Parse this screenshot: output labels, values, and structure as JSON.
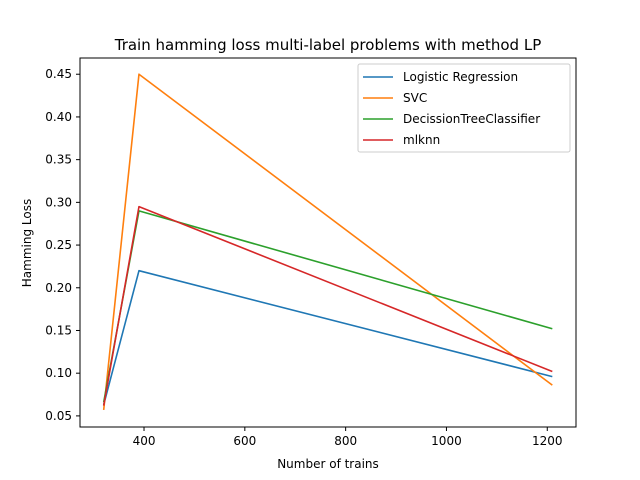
{
  "chart_data": {
    "type": "line",
    "title": "Train hamming loss multi-label problems with method LP",
    "xlabel": "Number of trains",
    "ylabel": "Hamming Loss",
    "xlim": [
      273,
      1257
    ],
    "ylim": [
      0.037,
      0.469
    ],
    "xticks": [
      400,
      600,
      800,
      1000,
      1200
    ],
    "xtick_labels": [
      "400",
      "600",
      "800",
      "1000",
      "1200"
    ],
    "yticks": [
      0.05,
      0.1,
      0.15,
      0.2,
      0.25,
      0.3,
      0.35,
      0.4,
      0.45
    ],
    "ytick_labels": [
      "0.05",
      "0.10",
      "0.15",
      "0.20",
      "0.25",
      "0.30",
      "0.35",
      "0.40",
      "0.45"
    ],
    "grid": false,
    "legend_position": "upper-right",
    "series": [
      {
        "name": "Logistic Regression",
        "color": "#1f77b4",
        "x": [
          320,
          390,
          1210
        ],
        "y": [
          0.063,
          0.22,
          0.096
        ]
      },
      {
        "name": "SVC",
        "color": "#ff7f0e",
        "x": [
          320,
          390,
          1210
        ],
        "y": [
          0.057,
          0.45,
          0.086
        ]
      },
      {
        "name": "DecissionTreeClassifier",
        "color": "#2ca02c",
        "x": [
          320,
          390,
          1210
        ],
        "y": [
          0.066,
          0.29,
          0.152
        ]
      },
      {
        "name": "mlknn",
        "color": "#d62728",
        "x": [
          320,
          390,
          1210
        ],
        "y": [
          0.062,
          0.295,
          0.102
        ]
      }
    ]
  }
}
